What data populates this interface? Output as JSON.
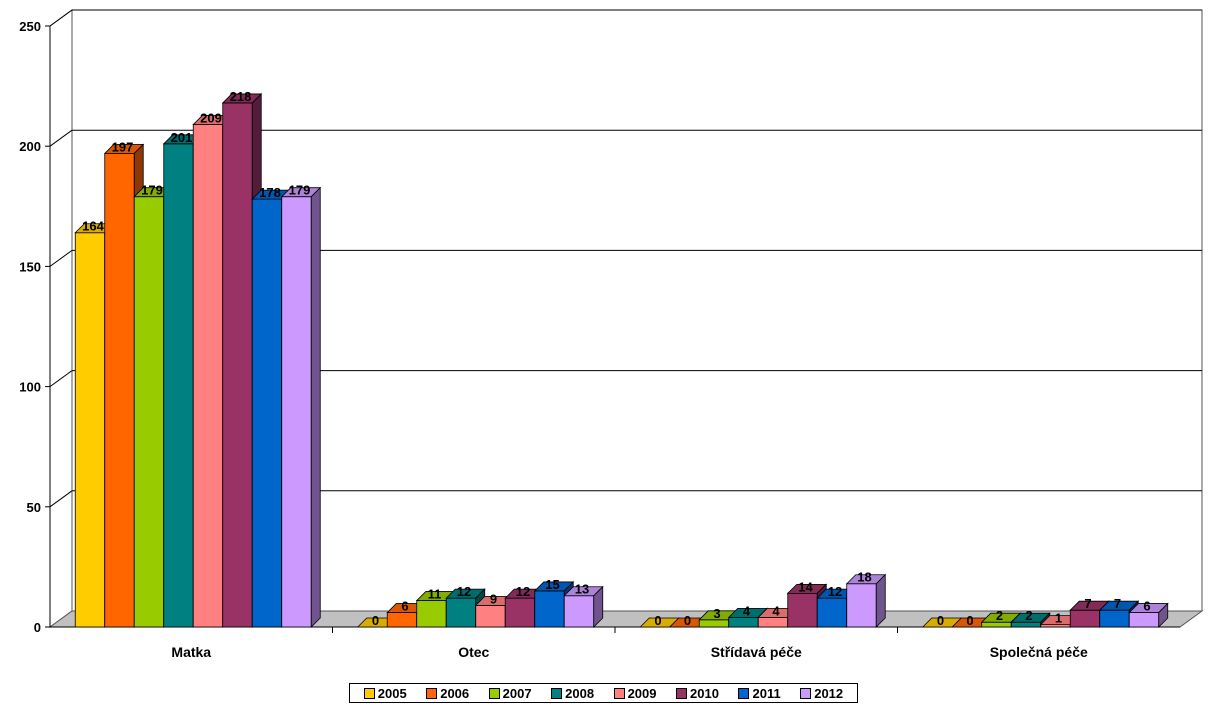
{
  "chart_data": {
    "type": "bar",
    "title": "",
    "xlabel": "",
    "ylabel": "",
    "ylim": [
      0,
      250
    ],
    "yticks": [
      "0",
      "50",
      "100",
      "150",
      "200",
      "250"
    ],
    "grid": true,
    "legend_position": "bottom",
    "categories": [
      "Matka",
      "Otec",
      "Střídavá péče",
      "Společná péče"
    ],
    "series": [
      {
        "name": "2005",
        "color": "#ffcc00",
        "values": [
          164,
          0,
          0,
          0
        ]
      },
      {
        "name": "2006",
        "color": "#ff6600",
        "values": [
          197,
          6,
          0,
          0
        ]
      },
      {
        "name": "2007",
        "color": "#99cc00",
        "values": [
          179,
          11,
          3,
          2
        ]
      },
      {
        "name": "2008",
        "color": "#008080",
        "values": [
          201,
          12,
          4,
          2
        ]
      },
      {
        "name": "2009",
        "color": "#ff8080",
        "values": [
          209,
          9,
          4,
          1
        ]
      },
      {
        "name": "2010",
        "color": "#993366",
        "values": [
          218,
          12,
          14,
          7
        ]
      },
      {
        "name": "2011",
        "color": "#0066cc",
        "values": [
          178,
          15,
          12,
          7
        ]
      },
      {
        "name": "2012",
        "color": "#cc99ff",
        "values": [
          179,
          13,
          18,
          6
        ]
      }
    ]
  }
}
